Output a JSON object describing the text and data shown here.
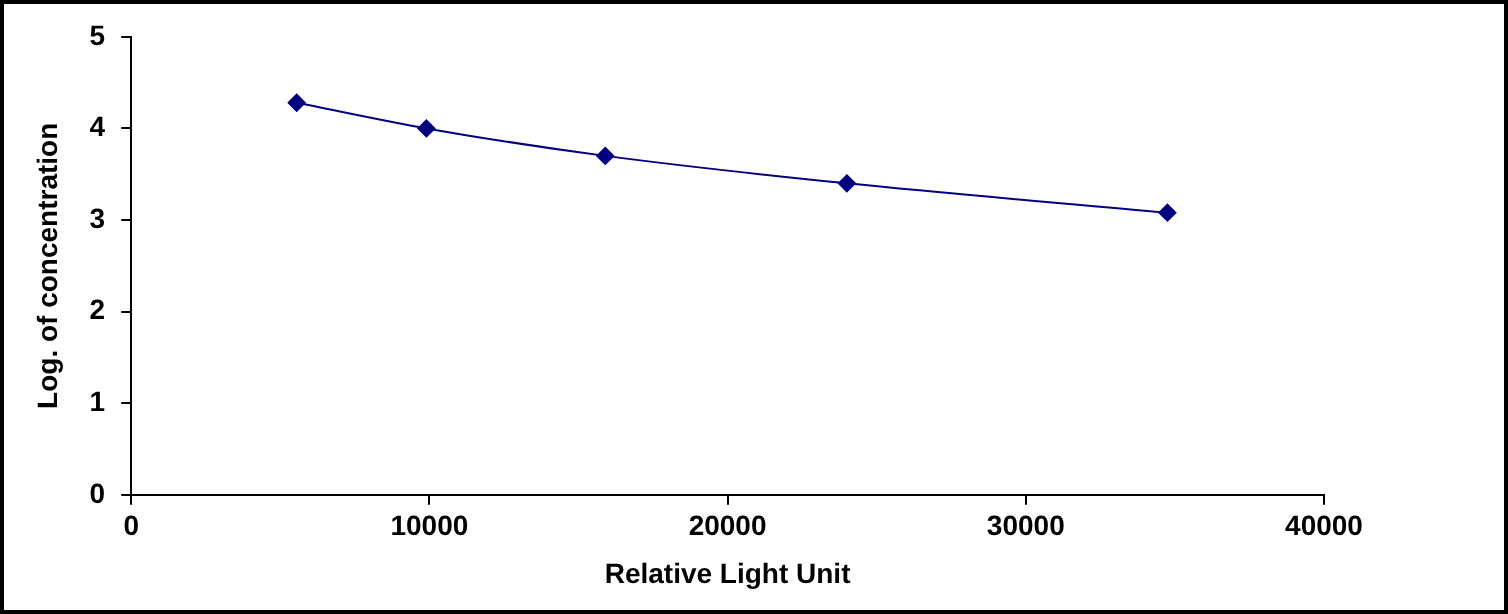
{
  "chart_data": {
    "type": "line",
    "xlabel": "Relative Light Unit",
    "ylabel": "Log. of concentration",
    "x": [
      5550,
      9900,
      15900,
      24000,
      34750
    ],
    "series": [
      {
        "color": "#000080",
        "values": [
          4.28,
          4.0,
          3.7,
          3.4,
          3.08
        ]
      }
    ],
    "xlim": [
      0,
      40000
    ],
    "xticks": [
      0,
      10000,
      20000,
      30000,
      40000
    ],
    "ylim": [
      0,
      5
    ],
    "yticks": [
      0,
      1,
      2,
      3,
      4,
      5
    ],
    "grid": false,
    "legend": false,
    "marker": "diamond",
    "line_style": "solid"
  }
}
